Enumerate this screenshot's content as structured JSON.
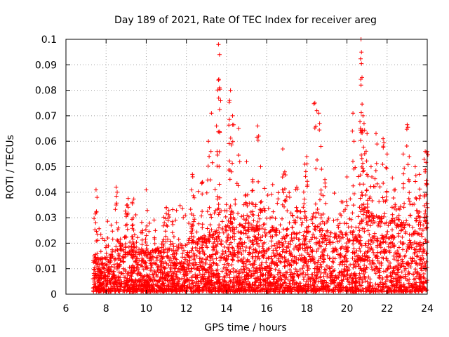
{
  "chart_data": {
    "type": "scatter",
    "title": "Day 189 of 2021, Rate Of TEC Index for receiver areg",
    "xlabel": "GPS time / hours",
    "ylabel": "ROTI / TECUs",
    "xlim": [
      6,
      24
    ],
    "ylim": [
      0,
      0.1
    ],
    "x_ticks": [
      "6",
      "8",
      "10",
      "12",
      "14",
      "16",
      "18",
      "20",
      "22",
      "24"
    ],
    "y_ticks": [
      "0",
      "0.01",
      "0.02",
      "0.03",
      "0.04",
      "0.05",
      "0.06",
      "0.07",
      "0.08",
      "0.09",
      "0.1"
    ],
    "grid": true,
    "marker": "+",
    "color": "#ff0000",
    "series": [
      {
        "name": "ROTI",
        "x_start": 7.35,
        "x_end": 24.0,
        "baseline_envelope": [
          [
            7.35,
            0.012
          ],
          [
            8.0,
            0.014
          ],
          [
            9.0,
            0.02
          ],
          [
            10.0,
            0.016
          ],
          [
            11.0,
            0.017
          ],
          [
            12.0,
            0.019
          ],
          [
            13.0,
            0.022
          ],
          [
            14.0,
            0.026
          ],
          [
            15.0,
            0.026
          ],
          [
            16.0,
            0.024
          ],
          [
            17.0,
            0.025
          ],
          [
            18.0,
            0.026
          ],
          [
            19.0,
            0.024
          ],
          [
            20.0,
            0.022
          ],
          [
            20.5,
            0.032
          ],
          [
            21.0,
            0.032
          ],
          [
            22.0,
            0.028
          ],
          [
            23.0,
            0.026
          ],
          [
            24.0,
            0.028
          ]
        ],
        "peaks": [
          [
            7.5,
            0.041
          ],
          [
            7.55,
            0.038
          ],
          [
            8.5,
            0.042
          ],
          [
            8.55,
            0.04
          ],
          [
            9.05,
            0.035
          ],
          [
            9.3,
            0.036
          ],
          [
            10.0,
            0.041
          ],
          [
            11.0,
            0.034
          ],
          [
            12.3,
            0.047
          ],
          [
            12.8,
            0.044
          ],
          [
            13.1,
            0.06
          ],
          [
            13.25,
            0.071
          ],
          [
            13.5,
            0.066
          ],
          [
            13.6,
            0.098
          ],
          [
            13.65,
            0.094
          ],
          [
            13.6,
            0.084
          ],
          [
            13.65,
            0.081
          ],
          [
            14.2,
            0.08
          ],
          [
            14.15,
            0.076
          ],
          [
            14.3,
            0.07
          ],
          [
            14.6,
            0.065
          ],
          [
            15.0,
            0.052
          ],
          [
            15.3,
            0.045
          ],
          [
            15.55,
            0.066
          ],
          [
            15.6,
            0.062
          ],
          [
            15.7,
            0.05
          ],
          [
            16.3,
            0.043
          ],
          [
            16.8,
            0.057
          ],
          [
            16.9,
            0.048
          ],
          [
            17.5,
            0.042
          ],
          [
            17.9,
            0.051
          ],
          [
            18.0,
            0.054
          ],
          [
            18.4,
            0.075
          ],
          [
            18.5,
            0.072
          ],
          [
            18.6,
            0.071
          ],
          [
            18.7,
            0.058
          ],
          [
            18.9,
            0.045
          ],
          [
            20.0,
            0.046
          ],
          [
            20.3,
            0.071
          ],
          [
            20.35,
            0.06
          ],
          [
            20.7,
            0.1
          ],
          [
            20.72,
            0.095
          ],
          [
            20.75,
            0.085
          ],
          [
            20.7,
            0.082
          ],
          [
            20.8,
            0.07
          ],
          [
            20.85,
            0.067
          ],
          [
            21.0,
            0.063
          ],
          [
            21.2,
            0.05
          ],
          [
            21.45,
            0.063
          ],
          [
            21.8,
            0.061
          ],
          [
            22.0,
            0.055
          ],
          [
            22.4,
            0.041
          ],
          [
            22.8,
            0.055
          ],
          [
            23.0,
            0.0665
          ],
          [
            23.1,
            0.054
          ],
          [
            23.4,
            0.05
          ],
          [
            23.6,
            0.047
          ],
          [
            23.9,
            0.056
          ],
          [
            24.0,
            0.056
          ],
          [
            23.9,
            0.048
          ]
        ]
      }
    ]
  }
}
